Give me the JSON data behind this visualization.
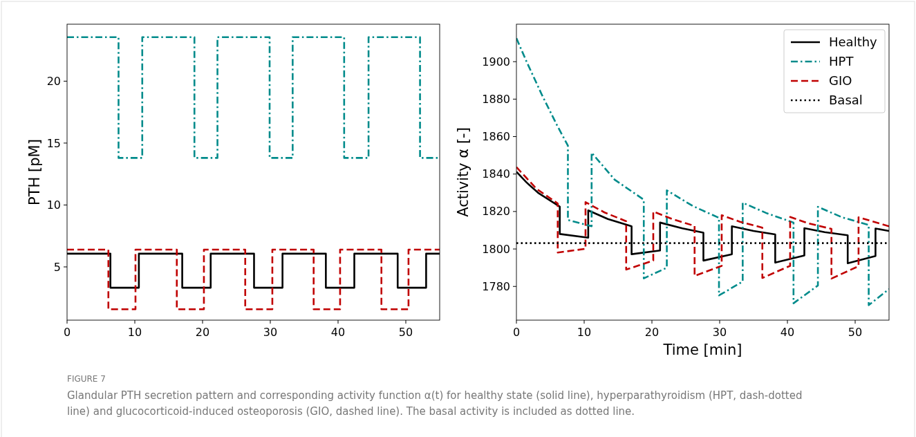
{
  "chart_data": [
    {
      "type": "step",
      "ylabel": "PTH [pM]",
      "xlim": [
        0,
        55
      ],
      "ylim": [
        0.7,
        24.6
      ],
      "xticks": [
        0,
        10,
        20,
        30,
        40,
        50
      ],
      "yticks": [
        5,
        10,
        15,
        20
      ],
      "legend": false,
      "annotations": [
        "FIGURE 7",
        "Glandular PTH secretion pattern and corresponding activity function α(t) for healthy state (solid line), hyperparathyroidism (HPT, dash-dotted line) and glucocorticoid-induced osteoporosis (GIO, dashed line). The basal activity is included as dotted line."
      ],
      "series": [
        {
          "color": "#000000",
          "line_style": "solid",
          "x": [
            0,
            6.4,
            10.6,
            17.0,
            21.2,
            27.6,
            31.8,
            38.2,
            42.4,
            48.8,
            53.0,
            55
          ],
          "values": [
            6.07,
            3.32,
            6.07,
            3.32,
            6.07,
            3.32,
            6.07,
            3.32,
            6.07,
            3.32,
            6.07,
            6.07
          ]
        },
        {
          "color": "#008b8b",
          "line_style": "dashdot",
          "x": [
            0,
            7.6,
            11.1,
            18.8,
            22.2,
            29.9,
            33.3,
            40.9,
            44.5,
            52.1,
            55
          ],
          "values": [
            23.55,
            13.8,
            23.55,
            13.8,
            23.55,
            13.8,
            23.55,
            13.8,
            23.55,
            13.8,
            13.8
          ]
        },
        {
          "color": "#c00000",
          "line_style": "dashed",
          "x": [
            0,
            6.1,
            10.1,
            16.2,
            20.2,
            26.3,
            30.3,
            36.4,
            40.3,
            46.4,
            50.4,
            55
          ],
          "values": [
            6.4,
            1.58,
            6.4,
            1.58,
            6.4,
            1.58,
            6.4,
            1.58,
            6.4,
            1.58,
            6.4,
            6.4
          ]
        }
      ]
    },
    {
      "type": "line",
      "xlabel": "Time [min]",
      "ylabel": "Activity α [-]",
      "xlim": [
        0,
        55
      ],
      "ylim": [
        1762,
        1920
      ],
      "xticks": [
        0,
        10,
        20,
        30,
        40,
        50
      ],
      "yticks": [
        1780,
        1800,
        1820,
        1840,
        1860,
        1880,
        1900
      ],
      "legend": "top right",
      "series": [
        {
          "name": "Healthy",
          "color": "#000000",
          "line_style": "solid",
          "x": [
            0,
            1.5,
            3.2,
            5,
            6.4,
            6.4,
            10.6,
            10.6,
            13.5,
            17.0,
            17.0,
            21.2,
            21.2,
            24.5,
            27.6,
            27.6,
            31.8,
            31.8,
            35,
            38.2,
            38.2,
            42.5,
            42.5,
            45.5,
            48.9,
            48.9,
            53.0,
            53.0,
            55
          ],
          "values": [
            1841.2,
            1835.5,
            1830,
            1825.8,
            1822.6,
            1808.0,
            1806.0,
            1820.6,
            1816,
            1812.1,
            1797.2,
            1799.2,
            1814.1,
            1811,
            1808.7,
            1793.8,
            1797.2,
            1812.1,
            1809.6,
            1807.8,
            1792.7,
            1796.5,
            1811.1,
            1809,
            1807.3,
            1792.4,
            1796.2,
            1810.9,
            1809.6
          ]
        },
        {
          "name": "HPT",
          "color": "#008b8b",
          "line_style": "dashdot",
          "x": [
            0,
            1.5,
            3.8,
            6,
            7.6,
            7.6,
            11.1,
            11.1,
            14.5,
            18.8,
            18.8,
            22.2,
            22.2,
            26,
            29.9,
            29.9,
            33.4,
            33.4,
            37,
            40.9,
            40.9,
            44.5,
            44.5,
            48,
            52.0,
            52.0,
            55
          ],
          "values": [
            1912.5,
            1900,
            1882,
            1866,
            1855.2,
            1815.5,
            1812.1,
            1851.4,
            1837,
            1826.3,
            1784.3,
            1790,
            1831.3,
            1823,
            1816.6,
            1775.2,
            1782.6,
            1824.7,
            1819,
            1814.1,
            1771.0,
            1780.5,
            1822.5,
            1817,
            1812.8,
            1770,
            1778.6
          ]
        },
        {
          "name": "GIO",
          "color": "#c00000",
          "line_style": "dashed",
          "x": [
            0,
            3,
            6.1,
            6.1,
            10.2,
            10.2,
            13,
            16.2,
            16.2,
            20.2,
            20.2,
            23,
            26.3,
            26.3,
            30.3,
            30.3,
            33,
            36.3,
            36.3,
            40.4,
            40.4,
            43,
            46.5,
            46.5,
            50.5,
            50.5,
            55
          ],
          "values": [
            1843.7,
            1832,
            1824.3,
            1798.1,
            1800.1,
            1825,
            1819.5,
            1814.8,
            1789,
            1793.8,
            1820,
            1816,
            1812.3,
            1785.6,
            1791,
            1818,
            1814.5,
            1811.4,
            1784.5,
            1791,
            1817.1,
            1813.8,
            1810.7,
            1784.2,
            1790.8,
            1816.9,
            1812.1
          ]
        },
        {
          "name": "Basal",
          "color": "#000000",
          "line_style": "dotted",
          "x": [
            0,
            55
          ],
          "values": [
            1803.1,
            1803.1
          ]
        }
      ]
    }
  ]
}
